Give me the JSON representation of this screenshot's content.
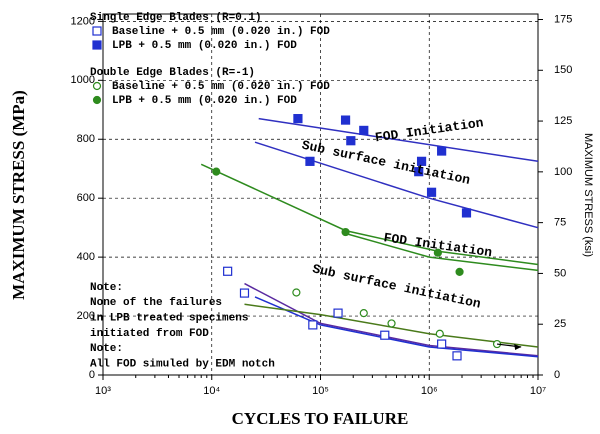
{
  "chart_data": {
    "type": "scatter",
    "xlabel": "CYCLES TO FAILURE",
    "ylabel": "MAXIMUM STRESS (MPa)",
    "y2label": "MAXIMUM STRESS (ksi)",
    "xscale": "log",
    "xlim": [
      1000,
      10000000
    ],
    "xticks": [
      {
        "value": 1000,
        "label": "10³"
      },
      {
        "value": 10000,
        "label": "10⁴"
      },
      {
        "value": 100000,
        "label": "10⁵"
      },
      {
        "value": 1000000,
        "label": "10⁶"
      },
      {
        "value": 10000000,
        "label": "10⁷"
      }
    ],
    "ylim": [
      0,
      1225
    ],
    "yticks": [
      0,
      200,
      400,
      600,
      800,
      1000,
      1200
    ],
    "y2lim": [
      0,
      177.7
    ],
    "y2ticks": [
      0,
      25,
      50,
      75,
      100,
      125,
      150,
      175
    ],
    "grid": true,
    "legend_groups": [
      "Single Edge Blades (R=0.1)",
      "Double Edge Blades (R=-1)"
    ],
    "series": [
      {
        "name": "Baseline + 0.5 mm (0.020 in.) FOD",
        "group": 0,
        "marker": "square-open",
        "color": "#2030d0",
        "x": [
          14000,
          20000,
          85000,
          145000,
          390000,
          1300000,
          1800000
        ],
        "values": [
          352,
          278,
          170,
          210,
          135,
          105,
          65
        ]
      },
      {
        "name": "LPB + 0.5 mm (0.020 in.) FOD",
        "group": 0,
        "marker": "square",
        "color": "#2030d0",
        "x": [
          62000,
          170000,
          190000,
          250000,
          80000,
          800000,
          850000,
          1050000,
          1300000,
          2200000
        ],
        "values": [
          870,
          865,
          795,
          830,
          725,
          690,
          725,
          620,
          760,
          550
        ]
      },
      {
        "name": "Baseline + 0.5 mm (0.020 in.) FOD",
        "group": 1,
        "marker": "circle-open",
        "color": "#2e8b1e",
        "x": [
          60000,
          250000,
          450000,
          1250000,
          4200000
        ],
        "values": [
          280,
          210,
          175,
          140,
          105
        ]
      },
      {
        "name": "LPB + 0.5 mm (0.020 in.) FOD",
        "group": 1,
        "marker": "circle",
        "color": "#2e8b1e",
        "x": [
          11000,
          170000,
          1200000,
          1900000
        ],
        "values": [
          690,
          485,
          415,
          350
        ]
      }
    ],
    "fit_lines": [
      {
        "color": "#3030c0",
        "x": [
          27000,
          10000000
        ],
        "values": [
          870,
          725
        ]
      },
      {
        "color": "#3030c0",
        "x": [
          25000,
          1000000,
          10000000
        ],
        "values": [
          790,
          600,
          500
        ]
      },
      {
        "color": "#2e8b1e",
        "x": [
          8000,
          170000,
          1200000,
          10000000
        ],
        "values": [
          715,
          490,
          420,
          375
        ]
      },
      {
        "color": "#2e8b1e",
        "x": [
          170000,
          1000000,
          10000000
        ],
        "values": [
          480,
          400,
          355
        ]
      },
      {
        "color": "#5a2aa0",
        "x": [
          20000,
          100000,
          1000000,
          10000000
        ],
        "values": [
          310,
          175,
          100,
          65
        ]
      },
      {
        "color": "#2030d0",
        "x": [
          25000,
          100000,
          1000000,
          10000000
        ],
        "values": [
          265,
          170,
          95,
          62
        ]
      },
      {
        "color": "#4a7a1a",
        "x": [
          20000,
          100000,
          1000000,
          10000000
        ],
        "values": [
          240,
          205,
          140,
          95
        ]
      }
    ],
    "annotations": [
      {
        "text": "FOD Initiation",
        "x": 1000000,
        "y": 830,
        "angle": -8
      },
      {
        "text": "Sub surface initiation",
        "x": 400000,
        "y": 720,
        "angle": 12
      },
      {
        "text": "FOD Initiation",
        "x": 1200000,
        "y": 440,
        "angle": 8
      },
      {
        "text": "Sub surface initiation",
        "x": 500000,
        "y": 300,
        "angle": 12
      }
    ],
    "note": [
      "Note:",
      "None of the failures",
      "in LPB treated specimens",
      "initiated from FOD",
      "Note:",
      "All FOD simuled by EDM notch"
    ]
  }
}
